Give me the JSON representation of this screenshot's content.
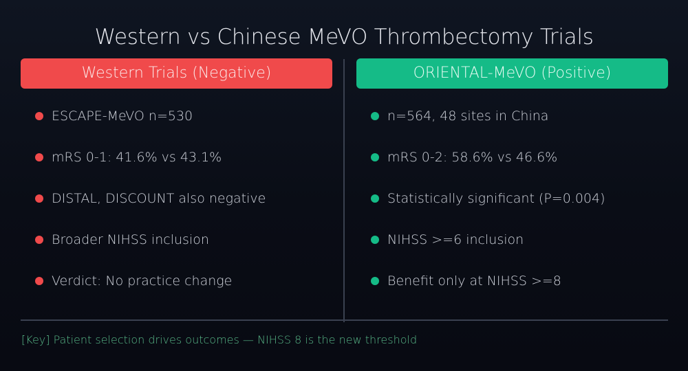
{
  "title": "Western vs Chinese MeVO Thrombectomy Trials",
  "left": {
    "header": "Western Trials (Negative)",
    "color": "#f04a4b",
    "items": [
      "ESCAPE-MeVO n=530",
      "mRS 0-1: 41.6% vs 43.1%",
      "DISTAL, DISCOUNT also negative",
      "Broader NIHSS inclusion",
      "Verdict: No practice change"
    ]
  },
  "right": {
    "header": "ORIENTAL-MeVO (Positive)",
    "color": "#15bb87",
    "items": [
      "n=564, 48 sites in China",
      "mRS 0-2: 58.6% vs 46.6%",
      "Statistically significant (P=0.004)",
      "NIHSS >=6 inclusion",
      "Benefit only at NIHSS >=8"
    ]
  },
  "footer": "[Key] Patient selection drives outcomes — NIHSS 8 is the new threshold"
}
